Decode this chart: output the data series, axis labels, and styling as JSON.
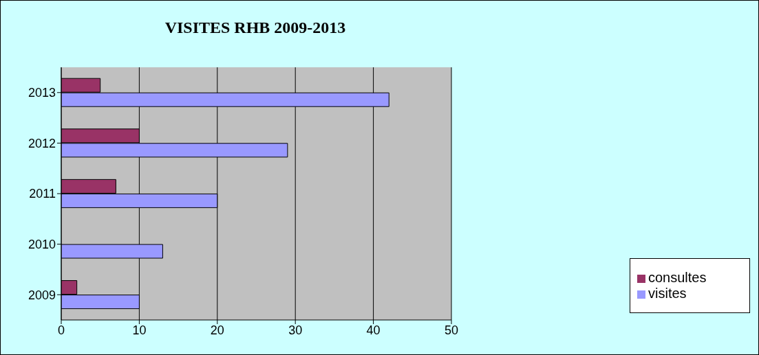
{
  "chart_data": {
    "type": "bar",
    "orientation": "horizontal",
    "title": "VISITES RHB 2009-2013",
    "categories": [
      "2013",
      "2012",
      "2011",
      "2010",
      "2009"
    ],
    "series": [
      {
        "name": "consultes",
        "color": "#993366",
        "values": [
          5,
          10,
          7,
          null,
          2
        ]
      },
      {
        "name": "visites",
        "color": "#9999ff",
        "values": [
          42,
          29,
          20,
          13,
          10
        ]
      }
    ],
    "xlim": [
      0,
      50
    ],
    "xticks": [
      0,
      10,
      20,
      30,
      40,
      50
    ],
    "grid": "x",
    "legend": "right"
  }
}
